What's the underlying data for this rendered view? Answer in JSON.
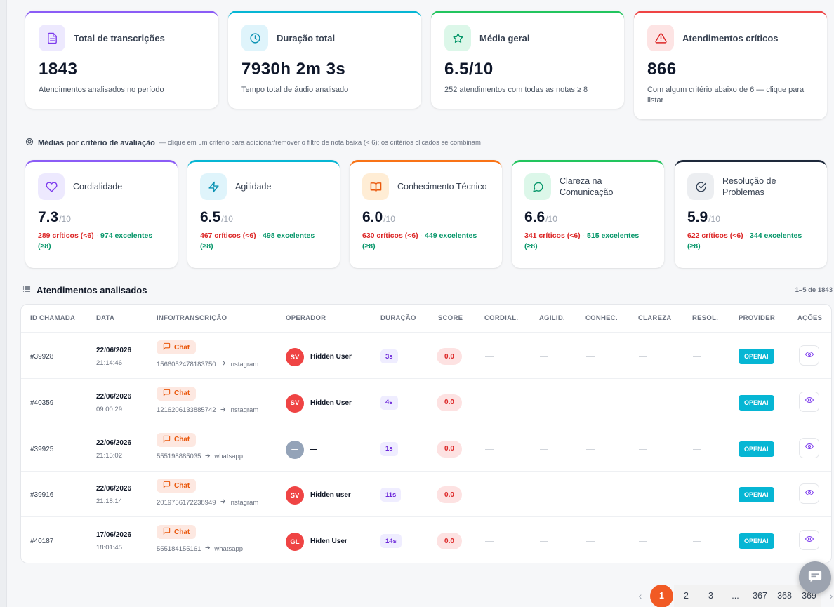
{
  "summary": [
    {
      "label": "Total de transcrições",
      "value": "1843",
      "sub": "Atendimentos analisados no período",
      "icon": "document-icon",
      "accent": "#8b5cf6",
      "iconbg": "#ede9fe",
      "iconcolor": "#7c3aed"
    },
    {
      "label": "Duração total",
      "value": "7930h 2m 3s",
      "sub": "Tempo total de áudio analisado",
      "icon": "clock-icon",
      "accent": "#06b6d4",
      "iconbg": "#dff4fb",
      "iconcolor": "#0891b2"
    },
    {
      "label": "Média geral",
      "value": "6.5/10",
      "sub": "252 atendimentos com todas as notas ≥ 8",
      "icon": "star-icon",
      "accent": "#22c55e",
      "iconbg": "#dcf7e9",
      "iconcolor": "#059669"
    },
    {
      "label": "Atendimentos críticos",
      "value": "866",
      "sub": "Com algum critério abaixo de 6 — clique para listar",
      "icon": "alert-triangle-icon",
      "accent": "#ef4444",
      "iconbg": "#fde4e4",
      "iconcolor": "#dc2626"
    }
  ],
  "criteria_section": {
    "title": "Médias por critério de avaliação",
    "hint": "— clique em um critério para adicionar/remover o filtro de nota baixa (< 6); os critérios clicados se combinam"
  },
  "criteria": [
    {
      "label": "Cordialidade",
      "value": "7.3",
      "den": "/10",
      "critical": "289 críticos (<6)",
      "excellent": "974 excelentes (≥8)",
      "icon": "heart-icon",
      "accent": "#8b5cf6",
      "iconbg": "#ede9fe",
      "iconcolor": "#7c3aed"
    },
    {
      "label": "Agilidade",
      "value": "6.5",
      "den": "/10",
      "critical": "467 críticos (<6)",
      "excellent": "498 excelentes (≥8)",
      "icon": "lightning-icon",
      "accent": "#06b6d4",
      "iconbg": "#dff4fb",
      "iconcolor": "#0891b2"
    },
    {
      "label": "Conhecimento Técnico",
      "value": "6.0",
      "den": "/10",
      "critical": "630 críticos (<6)",
      "excellent": "449 excelentes (≥8)",
      "icon": "book-icon",
      "accent": "#f97316",
      "iconbg": "#ffedd5",
      "iconcolor": "#ea580c"
    },
    {
      "label": "Clareza na Comunicação",
      "value": "6.6",
      "den": "/10",
      "critical": "341 críticos (<6)",
      "excellent": "515 excelentes (≥8)",
      "icon": "message-circle-icon",
      "accent": "#22c55e",
      "iconbg": "#dcf7e9",
      "iconcolor": "#059669"
    },
    {
      "label": "Resolução de Problemas",
      "value": "5.9",
      "den": "/10",
      "critical": "622 críticos (<6)",
      "excellent": "344 excelentes (≥8)",
      "icon": "check-circle-icon",
      "accent": "#1e293b",
      "iconbg": "#eceef1",
      "iconcolor": "#334155"
    }
  ],
  "table": {
    "title": "Atendimentos analisados",
    "range": "1–5 de 1843",
    "columns": [
      "ID CHAMADA",
      "DATA",
      "INFO/TRANSCRIÇÃO",
      "OPERADOR",
      "DURAÇÃO",
      "SCORE",
      "CORDIAL.",
      "AGILID.",
      "CONHEC.",
      "CLAREZA",
      "RESOL.",
      "PROVIDER",
      "AÇÕES"
    ],
    "rows": [
      {
        "id": "#39928",
        "date": "22/06/2026",
        "time": "21:14:46",
        "type": "Chat",
        "from": "1566052478183750",
        "channel": "instagram",
        "initials": "SV",
        "operator": "Hidden User",
        "duration": "3s",
        "score": "0.0",
        "crit": [
          "—",
          "—",
          "—",
          "—",
          "—"
        ],
        "provider": "OPENAI"
      },
      {
        "id": "#40359",
        "date": "22/06/2026",
        "time": "09:00:29",
        "type": "Chat",
        "from": "1216206133885742",
        "channel": "instagram",
        "initials": "SV",
        "operator": "Hidden User",
        "duration": "4s",
        "score": "0.0",
        "crit": [
          "—",
          "—",
          "—",
          "—",
          "—"
        ],
        "provider": "OPENAI"
      },
      {
        "id": "#39925",
        "date": "22/06/2026",
        "time": "21:15:02",
        "type": "Chat",
        "from": "555198885035",
        "channel": "whatsapp",
        "initials": "—",
        "operator": "—",
        "duration": "1s",
        "score": "0.0",
        "crit": [
          "—",
          "—",
          "—",
          "—",
          "—"
        ],
        "provider": "OPENAI"
      },
      {
        "id": "#39916",
        "date": "22/06/2026",
        "time": "21:18:14",
        "type": "Chat",
        "from": "2019756172238949",
        "channel": "instagram",
        "initials": "SV",
        "operator": "Hidden user",
        "duration": "11s",
        "score": "0.0",
        "crit": [
          "—",
          "—",
          "—",
          "—",
          "—"
        ],
        "provider": "OPENAI"
      },
      {
        "id": "#40187",
        "date": "17/06/2026",
        "time": "18:01:45",
        "type": "Chat",
        "from": "555184155161",
        "channel": "whatsapp",
        "initials": "GL",
        "operator": "Hiden User",
        "duration": "14s",
        "score": "0.0",
        "crit": [
          "—",
          "—",
          "—",
          "—",
          "—"
        ],
        "provider": "OPENAI"
      }
    ]
  },
  "pagination": {
    "prev": "‹",
    "pages": [
      "1",
      "2",
      "3",
      "...",
      "367",
      "368",
      "369"
    ],
    "current": "1",
    "next": "›"
  }
}
